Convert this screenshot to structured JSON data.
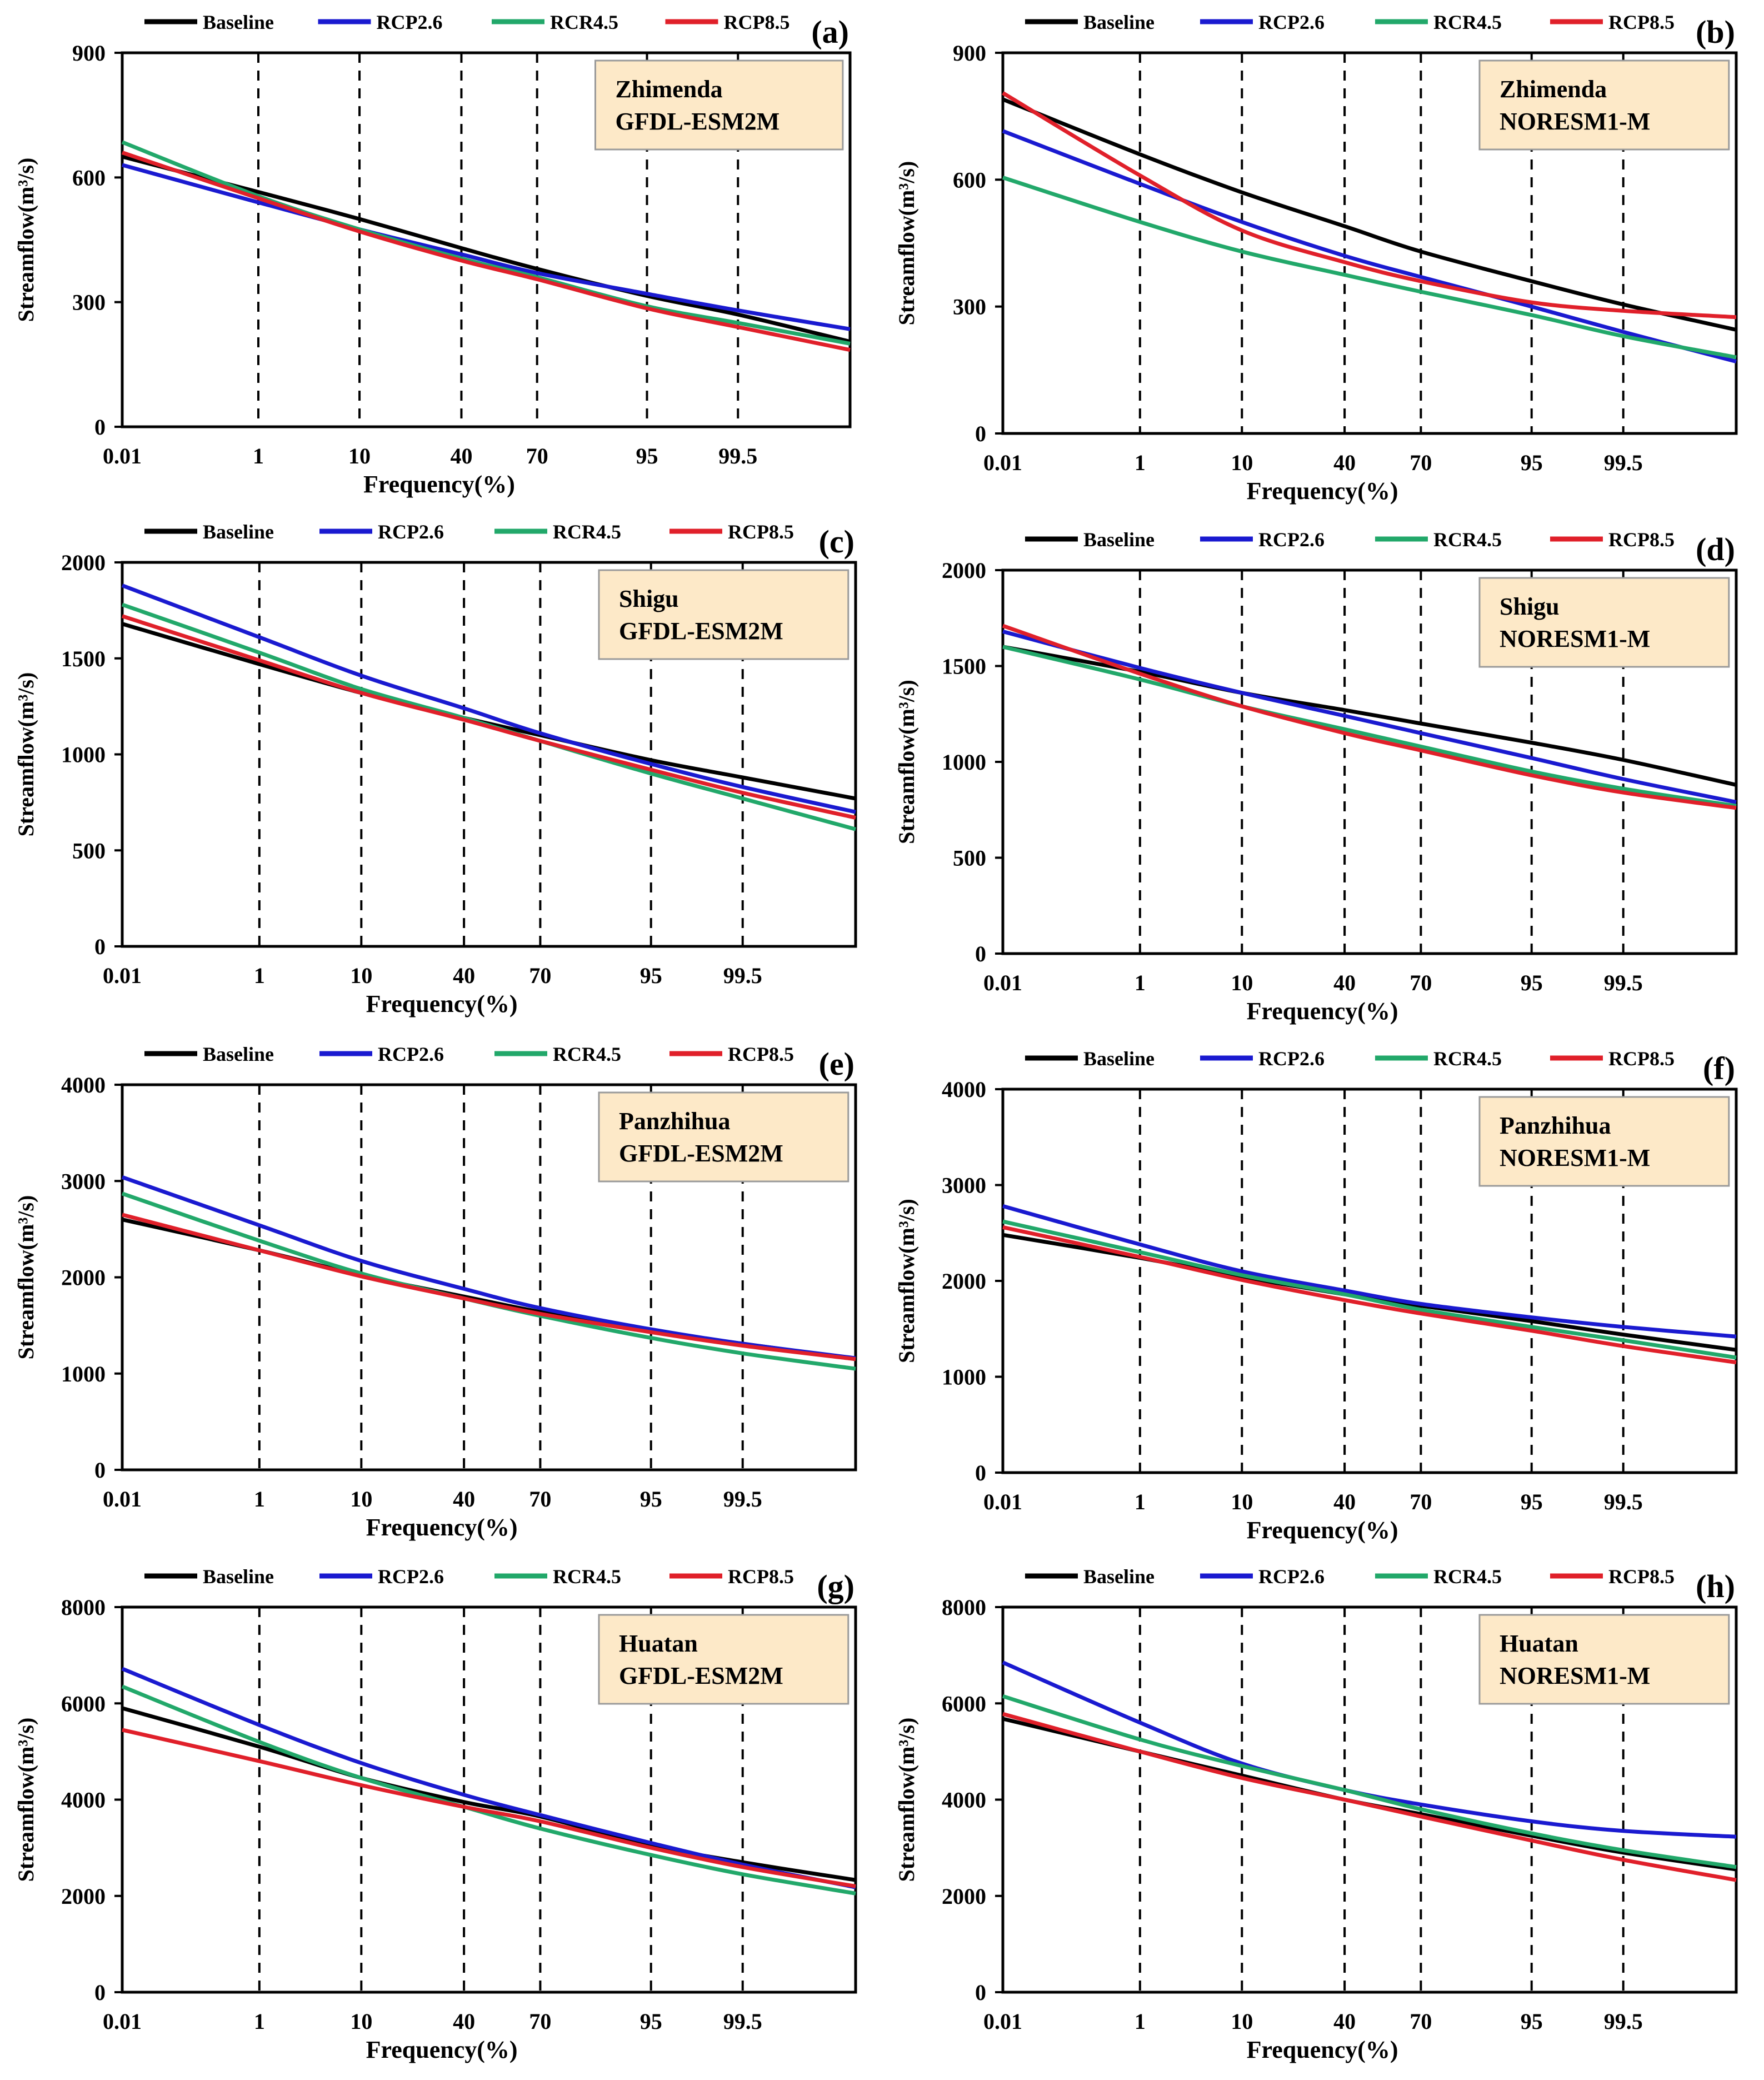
{
  "colors": {
    "baseline": "#000000",
    "rcp26": "#1a1ad0",
    "rcr45": "#22a86a",
    "rcp85": "#e0202a",
    "station_box_fill": "#fde9c8",
    "station_box_stroke": "#9a9a9a"
  },
  "legend_labels": [
    "Baseline",
    "RCP2.6",
    "RCR4.5",
    "RCP8.5"
  ],
  "chart_data": [
    {
      "type": "line",
      "panel": "(a)",
      "station": "Zhimenda",
      "model": "GFDL-ESM2M",
      "xlabel": "Frequency(%)",
      "ylabel": "Streamflow(m³/s)",
      "ylim": [
        0,
        900
      ],
      "yticks": [
        "0",
        "300",
        "600",
        "900"
      ],
      "x_ticks": [
        "0.01",
        "1",
        "10",
        "40",
        "70",
        "95",
        "99.5"
      ],
      "series": [
        {
          "name": "Baseline",
          "values": [
            650,
            565,
            500,
            430,
            380,
            315,
            270,
            205
          ]
        },
        {
          "name": "RCP2.6",
          "values": [
            630,
            540,
            475,
            415,
            370,
            320,
            280,
            235
          ]
        },
        {
          "name": "RCR4.5",
          "values": [
            685,
            555,
            475,
            405,
            360,
            290,
            250,
            200
          ]
        },
        {
          "name": "RCP8.5",
          "values": [
            660,
            550,
            470,
            400,
            355,
            285,
            240,
            185
          ]
        }
      ]
    },
    {
      "type": "line",
      "panel": "(b)",
      "station": "Zhimenda",
      "model": "NORESM1-M",
      "xlabel": "Frequency(%)",
      "ylabel": "Streamflow(m³/s)",
      "ylim": [
        0,
        900
      ],
      "yticks": [
        "0",
        "300",
        "600",
        "900"
      ],
      "x_ticks": [
        "0.01",
        "1",
        "10",
        "40",
        "70",
        "95",
        "99.5"
      ],
      "series": [
        {
          "name": "Baseline",
          "values": [
            790,
            660,
            570,
            490,
            430,
            360,
            305,
            245
          ]
        },
        {
          "name": "RCP2.6",
          "values": [
            715,
            590,
            500,
            420,
            370,
            300,
            240,
            170
          ]
        },
        {
          "name": "RCR4.5",
          "values": [
            605,
            500,
            430,
            375,
            335,
            280,
            230,
            180
          ]
        },
        {
          "name": "RCP8.5",
          "values": [
            805,
            610,
            480,
            405,
            360,
            310,
            290,
            275
          ]
        }
      ]
    },
    {
      "type": "line",
      "panel": "(c)",
      "station": "Shigu",
      "model": "GFDL-ESM2M",
      "xlabel": "Frequency(%)",
      "ylabel": "Streamflow(m³/s)",
      "ylim": [
        0,
        2000
      ],
      "yticks": [
        "0",
        "500",
        "1000",
        "1500",
        "2000"
      ],
      "x_ticks": [
        "0.01",
        "1",
        "10",
        "40",
        "70",
        "95",
        "99.5"
      ],
      "series": [
        {
          "name": "Baseline",
          "values": [
            1680,
            1470,
            1320,
            1190,
            1100,
            970,
            880,
            770
          ]
        },
        {
          "name": "RCP2.6",
          "values": [
            1880,
            1610,
            1410,
            1240,
            1110,
            950,
            830,
            700
          ]
        },
        {
          "name": "RCR4.5",
          "values": [
            1780,
            1530,
            1340,
            1190,
            1070,
            900,
            770,
            610
          ]
        },
        {
          "name": "RCP8.5",
          "values": [
            1720,
            1490,
            1320,
            1180,
            1070,
            920,
            800,
            670
          ]
        }
      ]
    },
    {
      "type": "line",
      "panel": "(d)",
      "station": "Shigu",
      "model": "NORESM1-M",
      "xlabel": "Frequency(%)",
      "ylabel": "Streamflow(m³/s)",
      "ylim": [
        0,
        2000
      ],
      "yticks": [
        "0",
        "500",
        "1000",
        "1500",
        "2000"
      ],
      "x_ticks": [
        "0.01",
        "1",
        "10",
        "40",
        "70",
        "95",
        "99.5"
      ],
      "series": [
        {
          "name": "Baseline",
          "values": [
            1600,
            1470,
            1360,
            1270,
            1200,
            1100,
            1010,
            880
          ]
        },
        {
          "name": "RCP2.6",
          "values": [
            1680,
            1490,
            1360,
            1240,
            1150,
            1020,
            910,
            790
          ]
        },
        {
          "name": "RCR4.5",
          "values": [
            1600,
            1430,
            1290,
            1170,
            1080,
            950,
            860,
            770
          ]
        },
        {
          "name": "RCP8.5",
          "values": [
            1710,
            1460,
            1290,
            1150,
            1060,
            930,
            840,
            760
          ]
        }
      ]
    },
    {
      "type": "line",
      "panel": "(e)",
      "station": "Panzhihua",
      "model": "GFDL-ESM2M",
      "xlabel": "Frequency(%)",
      "ylabel": "Streamflow(m³/s)",
      "ylim": [
        0,
        4000
      ],
      "yticks": [
        "0",
        "1000",
        "2000",
        "3000",
        "4000"
      ],
      "x_ticks": [
        "0.01",
        "1",
        "10",
        "40",
        "70",
        "95",
        "99.5"
      ],
      "series": [
        {
          "name": "Baseline",
          "values": [
            2600,
            2280,
            2020,
            1800,
            1640,
            1440,
            1310,
            1150
          ]
        },
        {
          "name": "RCP2.6",
          "values": [
            3040,
            2540,
            2170,
            1880,
            1680,
            1460,
            1310,
            1160
          ]
        },
        {
          "name": "RCR4.5",
          "values": [
            2870,
            2380,
            2040,
            1780,
            1600,
            1370,
            1210,
            1050
          ]
        },
        {
          "name": "RCP8.5",
          "values": [
            2650,
            2280,
            2010,
            1780,
            1620,
            1430,
            1290,
            1150
          ]
        }
      ]
    },
    {
      "type": "line",
      "panel": "(f)",
      "station": "Panzhihua",
      "model": "NORESM1-M",
      "xlabel": "Frequency(%)",
      "ylabel": "Streamflow(m³/s)",
      "ylim": [
        0,
        4000
      ],
      "yticks": [
        "0",
        "1000",
        "2000",
        "3000",
        "4000"
      ],
      "x_ticks": [
        "0.01",
        "1",
        "10",
        "40",
        "70",
        "95",
        "99.5"
      ],
      "series": [
        {
          "name": "Baseline",
          "values": [
            2480,
            2240,
            2040,
            1860,
            1740,
            1580,
            1440,
            1280
          ]
        },
        {
          "name": "RCP2.6",
          "values": [
            2780,
            2380,
            2100,
            1900,
            1760,
            1620,
            1520,
            1420
          ]
        },
        {
          "name": "RCR4.5",
          "values": [
            2620,
            2300,
            2060,
            1860,
            1700,
            1520,
            1380,
            1200
          ]
        },
        {
          "name": "RCP8.5",
          "values": [
            2560,
            2250,
            2010,
            1800,
            1660,
            1480,
            1320,
            1150
          ]
        }
      ]
    },
    {
      "type": "line",
      "panel": "(g)",
      "station": "Huatan",
      "model": "GFDL-ESM2M",
      "xlabel": "Frequency(%)",
      "ylabel": "Streamflow(m³/s)",
      "ylim": [
        0,
        8000
      ],
      "yticks": [
        "0",
        "2000",
        "4000",
        "6000",
        "8000"
      ],
      "x_ticks": [
        "0.01",
        "1",
        "10",
        "40",
        "70",
        "95",
        "99.5"
      ],
      "series": [
        {
          "name": "Baseline",
          "values": [
            5900,
            5100,
            4450,
            3950,
            3650,
            3050,
            2700,
            2330
          ]
        },
        {
          "name": "RCP2.6",
          "values": [
            6720,
            5550,
            4760,
            4100,
            3680,
            3100,
            2650,
            2180
          ]
        },
        {
          "name": "RCR4.5",
          "values": [
            6350,
            5200,
            4450,
            3850,
            3400,
            2850,
            2450,
            2050
          ]
        },
        {
          "name": "RCP8.5",
          "values": [
            5450,
            4800,
            4300,
            3850,
            3550,
            3000,
            2600,
            2200
          ]
        }
      ]
    },
    {
      "type": "line",
      "panel": "(h)",
      "station": "Huatan",
      "model": "NORESM1-M",
      "xlabel": "Frequency(%)",
      "ylabel": "Streamflow(m³/s)",
      "ylim": [
        0,
        8000
      ],
      "yticks": [
        "0",
        "2000",
        "4000",
        "6000",
        "8000"
      ],
      "x_ticks": [
        "0.01",
        "1",
        "10",
        "40",
        "70",
        "95",
        "99.5"
      ],
      "series": [
        {
          "name": "Baseline",
          "values": [
            5680,
            5000,
            4500,
            4000,
            3700,
            3250,
            2900,
            2550
          ]
        },
        {
          "name": "RCP2.6",
          "values": [
            6850,
            5600,
            4750,
            4200,
            3900,
            3550,
            3350,
            3230
          ]
        },
        {
          "name": "RCR4.5",
          "values": [
            6150,
            5250,
            4700,
            4200,
            3800,
            3300,
            2950,
            2600
          ]
        },
        {
          "name": "RCP8.5",
          "values": [
            5780,
            5000,
            4450,
            4000,
            3650,
            3150,
            2750,
            2330
          ]
        }
      ]
    }
  ]
}
